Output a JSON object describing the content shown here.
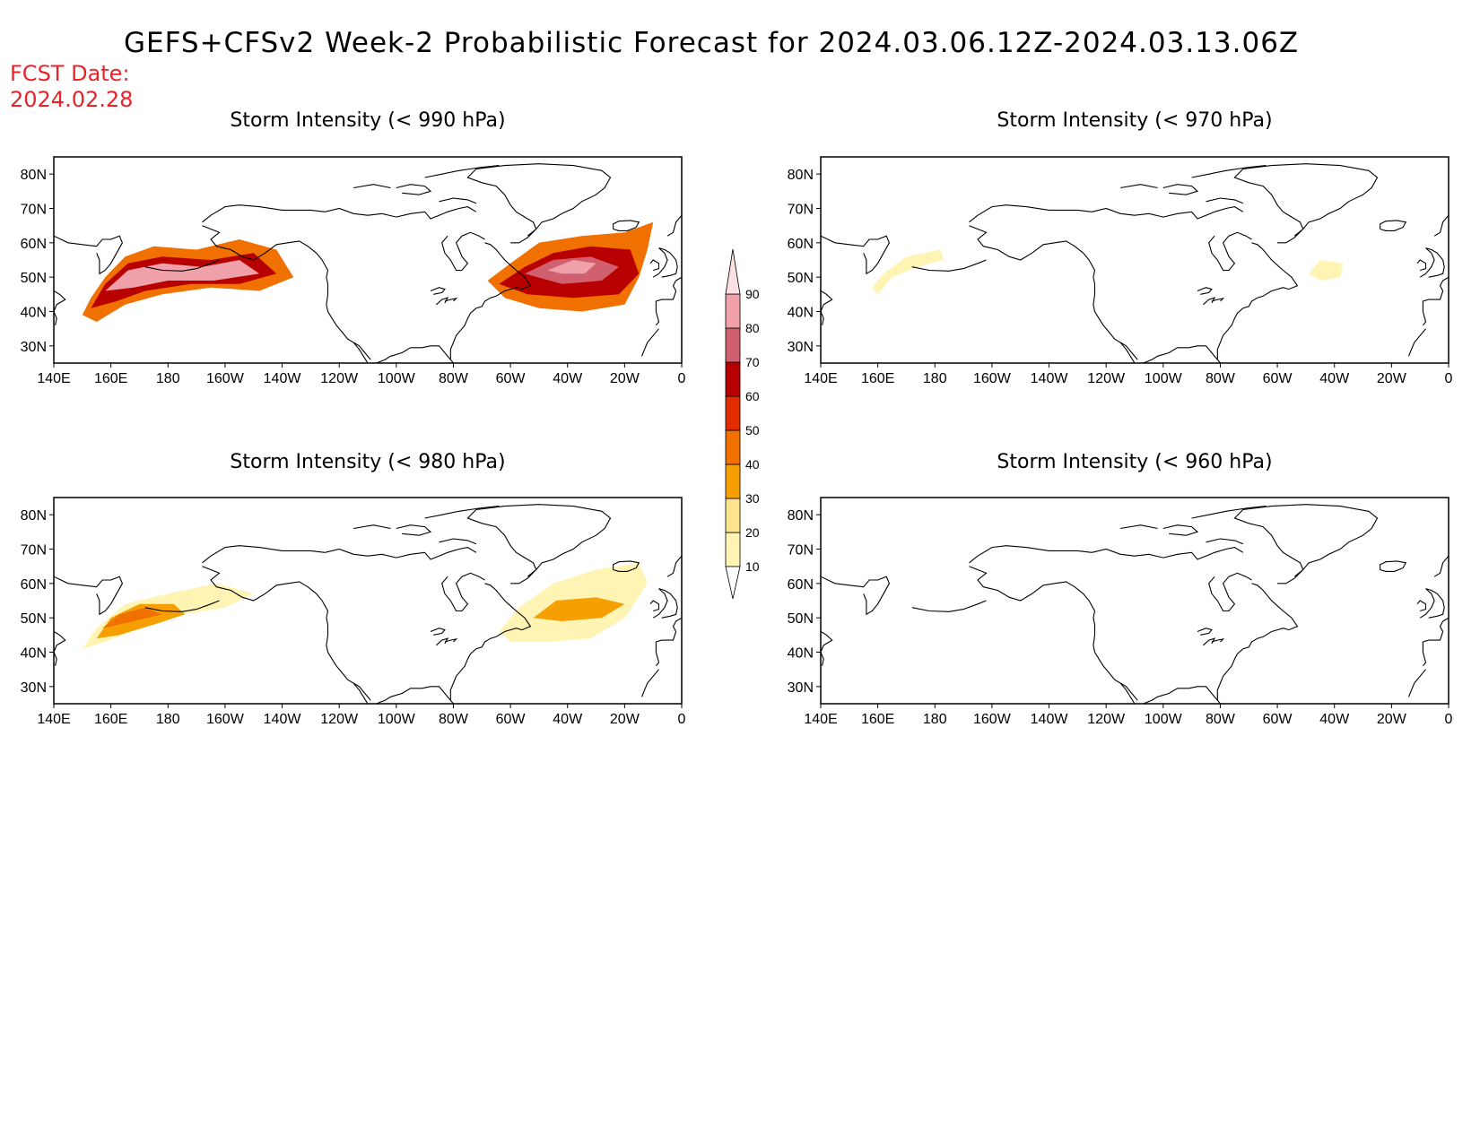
{
  "title": "GEFS+CFSv2 Week-2 Probabilistic Forecast for 2024.03.06.12Z-2024.03.13.06Z",
  "fcst_label": "FCST Date:",
  "fcst_date": "2024.02.28",
  "lon_labels": [
    "140E",
    "160E",
    "180",
    "160W",
    "140W",
    "120W",
    "100W",
    "80W",
    "60W",
    "40W",
    "20W",
    "0"
  ],
  "lat_labels": [
    "80N",
    "70N",
    "60N",
    "50N",
    "40N",
    "30N"
  ],
  "colorbar": {
    "levels": [
      "10",
      "20",
      "30",
      "40",
      "50",
      "60",
      "70",
      "80",
      "90"
    ],
    "colors": [
      "#fff4b4",
      "#fde38a",
      "#f5a000",
      "#f07000",
      "#e02c00",
      "#b80000",
      "#d06070",
      "#f0a0a8",
      "#fde0e4"
    ]
  },
  "panels": [
    {
      "id": "p990",
      "title": "Storm Intensity (< 990 hPa)",
      "blobs": [
        {
          "pts": [
            [
              150,
              39
            ],
            [
              153,
              44
            ],
            [
              158,
              50
            ],
            [
              165,
              56
            ],
            [
              175,
              59
            ],
            [
              190,
              58
            ],
            [
              205,
              61
            ],
            [
              218,
              58
            ],
            [
              224,
              50
            ],
            [
              212,
              46
            ],
            [
              195,
              47
            ],
            [
              178,
              45
            ],
            [
              165,
              42
            ],
            [
              155,
              37
            ]
          ],
          "level": 3
        },
        {
          "pts": [
            [
              153,
              41
            ],
            [
              158,
              48
            ],
            [
              166,
              54
            ],
            [
              178,
              56
            ],
            [
              195,
              55
            ],
            [
              210,
              57
            ],
            [
              218,
              51
            ],
            [
              205,
              48
            ],
            [
              188,
              48
            ],
            [
              172,
              46
            ],
            [
              162,
              43
            ]
          ],
          "level": 5
        },
        {
          "pts": [
            [
              158,
              46
            ],
            [
              166,
              52
            ],
            [
              178,
              54
            ],
            [
              192,
              53
            ],
            [
              205,
              55
            ],
            [
              212,
              51
            ],
            [
              196,
              49
            ],
            [
              180,
              49
            ],
            [
              168,
              47
            ]
          ],
          "level": 7
        },
        {
          "pts": [
            [
              292,
              49
            ],
            [
              300,
              54
            ],
            [
              310,
              60
            ],
            [
              325,
              62
            ],
            [
              340,
              63
            ],
            [
              350,
              66
            ],
            [
              348,
              58
            ],
            [
              345,
              50
            ],
            [
              340,
              42
            ],
            [
              325,
              40
            ],
            [
              310,
              41
            ],
            [
              298,
              44
            ]
          ],
          "level": 3
        },
        {
          "pts": [
            [
              296,
              48
            ],
            [
              305,
              53
            ],
            [
              315,
              57
            ],
            [
              328,
              59
            ],
            [
              342,
              58
            ],
            [
              345,
              51
            ],
            [
              338,
              45
            ],
            [
              322,
              44
            ],
            [
              306,
              45
            ]
          ],
          "level": 5
        },
        {
          "pts": [
            [
              305,
              51
            ],
            [
              315,
              55
            ],
            [
              328,
              56
            ],
            [
              338,
              53
            ],
            [
              332,
              49
            ],
            [
              318,
              48
            ]
          ],
          "level": 6
        },
        {
          "pts": [
            [
              313,
              52
            ],
            [
              322,
              55
            ],
            [
              330,
              54
            ],
            [
              326,
              51
            ],
            [
              318,
              51
            ]
          ],
          "level": 7
        }
      ]
    },
    {
      "id": "p970",
      "title": "Storm Intensity (< 970 hPa)",
      "blobs": [
        {
          "pts": [
            [
              158,
              47
            ],
            [
              162,
              51
            ],
            [
              170,
              56
            ],
            [
              182,
              58
            ],
            [
              183,
              55
            ],
            [
              174,
              53
            ],
            [
              165,
              50
            ],
            [
              160,
              45
            ]
          ],
          "level": 0
        },
        {
          "pts": [
            [
              311,
              51
            ],
            [
              315,
              55
            ],
            [
              323,
              54
            ],
            [
              322,
              50
            ],
            [
              315,
              49
            ]
          ],
          "level": 0
        }
      ]
    },
    {
      "id": "p980",
      "title": "Storm Intensity (< 980 hPa)",
      "blobs": [
        {
          "pts": [
            [
              150,
              41
            ],
            [
              155,
              47
            ],
            [
              165,
              54
            ],
            [
              180,
              57
            ],
            [
              197,
              60
            ],
            [
              210,
              57
            ],
            [
              200,
              53
            ],
            [
              185,
              51
            ],
            [
              170,
              47
            ],
            [
              158,
              43
            ]
          ],
          "level": 0
        },
        {
          "pts": [
            [
              155,
              44
            ],
            [
              160,
              50
            ],
            [
              170,
              54
            ],
            [
              182,
              54
            ],
            [
              186,
              51
            ],
            [
              175,
              48
            ],
            [
              163,
              45
            ]
          ],
          "level": 2
        },
        {
          "pts": [
            [
              157,
              47
            ],
            [
              163,
              51
            ],
            [
              172,
              53
            ],
            [
              178,
              51
            ],
            [
              168,
              49
            ]
          ],
          "level": 3
        },
        {
          "pts": [
            [
              296,
              46
            ],
            [
              303,
              53
            ],
            [
              315,
              60
            ],
            [
              330,
              64
            ],
            [
              345,
              66
            ],
            [
              348,
              60
            ],
            [
              340,
              50
            ],
            [
              328,
              44
            ],
            [
              313,
              43
            ],
            [
              300,
              43
            ]
          ],
          "level": 0
        },
        {
          "pts": [
            [
              308,
              50
            ],
            [
              316,
              55
            ],
            [
              330,
              56
            ],
            [
              340,
              54
            ],
            [
              332,
              50
            ],
            [
              318,
              49
            ]
          ],
          "level": 2
        }
      ]
    },
    {
      "id": "p960",
      "title": "Storm Intensity (< 960 hPa)",
      "blobs": []
    }
  ]
}
